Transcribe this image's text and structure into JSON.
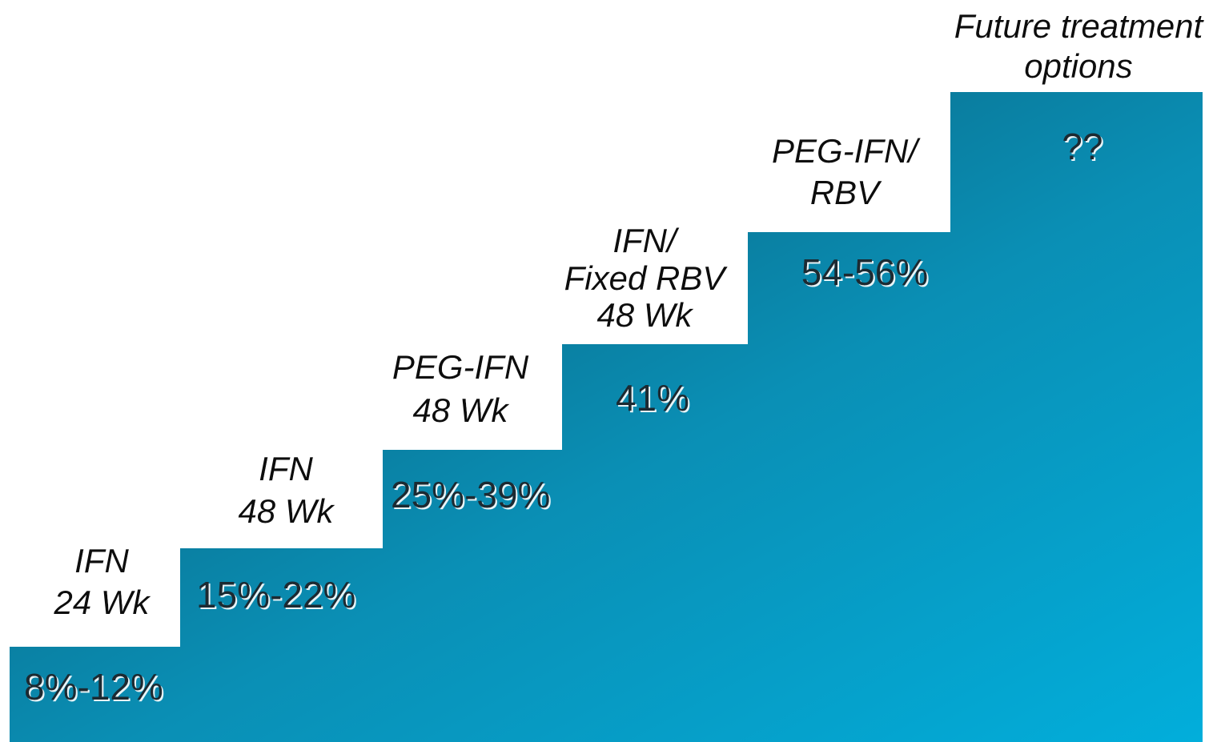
{
  "steps": [
    {
      "label": [
        "IFN",
        "24 Wk"
      ],
      "value": "8%-12%"
    },
    {
      "label": [
        "IFN",
        "48 Wk"
      ],
      "value": "15%-22%"
    },
    {
      "label": [
        "PEG-IFN",
        "48 Wk"
      ],
      "value": "25%-39%"
    },
    {
      "label": [
        "IFN/",
        "Fixed RBV",
        "48 Wk"
      ],
      "value": "41%"
    },
    {
      "label": [
        "PEG-IFN/",
        "RBV"
      ],
      "value": "54-56%"
    },
    {
      "label": [
        "Future treatment",
        "options"
      ],
      "value": "??"
    }
  ]
}
